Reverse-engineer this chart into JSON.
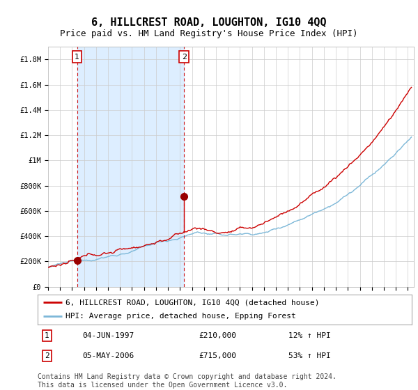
{
  "title": "6, HILLCREST ROAD, LOUGHTON, IG10 4QQ",
  "subtitle": "Price paid vs. HM Land Registry's House Price Index (HPI)",
  "ylabel_ticks": [
    "£0",
    "£200K",
    "£400K",
    "£600K",
    "£800K",
    "£1M",
    "£1.2M",
    "£1.4M",
    "£1.6M",
    "£1.8M"
  ],
  "ytick_values": [
    0,
    200000,
    400000,
    600000,
    800000,
    1000000,
    1200000,
    1400000,
    1600000,
    1800000
  ],
  "ylim": [
    0,
    1900000
  ],
  "xlim_start": 1995.0,
  "xlim_end": 2025.5,
  "purchase1_x": 1997.42,
  "purchase1_y": 210000,
  "purchase2_x": 2006.34,
  "purchase2_y": 715000,
  "purchase1_date": "04-JUN-1997",
  "purchase1_price": "£210,000",
  "purchase1_hpi": "12% ↑ HPI",
  "purchase2_date": "05-MAY-2006",
  "purchase2_price": "£715,000",
  "purchase2_hpi": "53% ↑ HPI",
  "hpi_line_color": "#7db8d8",
  "price_line_color": "#cc0000",
  "purchase_dot_color": "#990000",
  "vline_color": "#cc0000",
  "shade_color": "#ddeeff",
  "grid_color": "#cccccc",
  "bg_color": "#ffffff",
  "legend_house_label": "6, HILLCREST ROAD, LOUGHTON, IG10 4QQ (detached house)",
  "legend_hpi_label": "HPI: Average price, detached house, Epping Forest",
  "footer": "Contains HM Land Registry data © Crown copyright and database right 2024.\nThis data is licensed under the Open Government Licence v3.0.",
  "title_fontsize": 11,
  "subtitle_fontsize": 9,
  "tick_fontsize": 7.5,
  "legend_fontsize": 8,
  "footer_fontsize": 7,
  "label_fontsize": 8
}
